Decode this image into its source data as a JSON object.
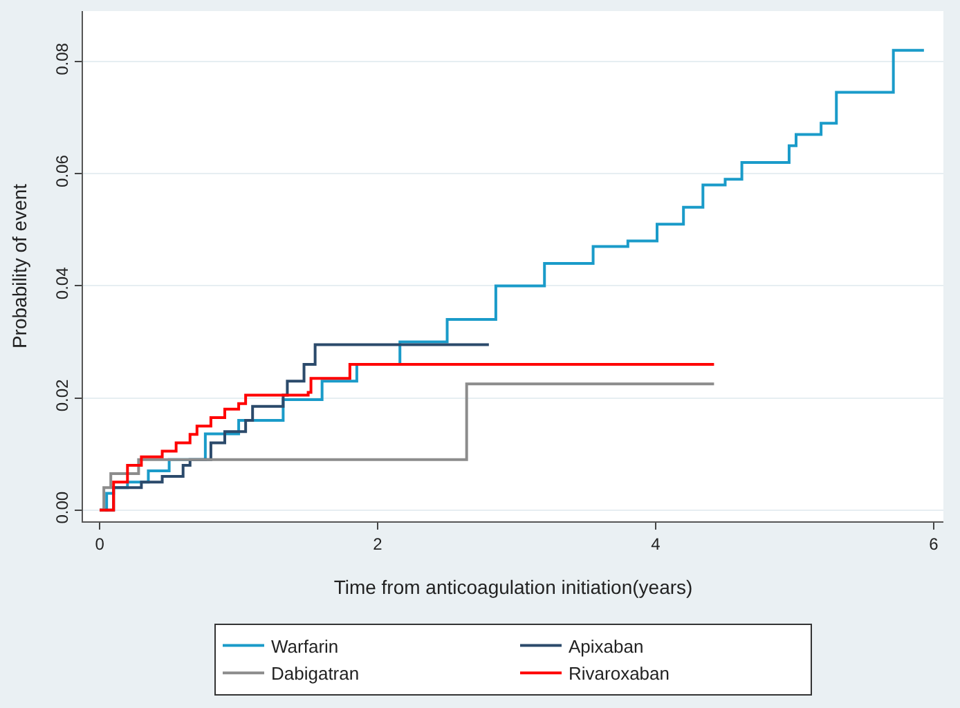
{
  "chart_data": {
    "type": "step",
    "xlabel": "Time from anticoagulation initiation(years)",
    "ylabel": "Probability of event",
    "xlim": [
      -0.12,
      6.07
    ],
    "xticks": [
      0,
      2,
      4,
      6
    ],
    "ylim": [
      -0.002,
      0.089
    ],
    "yticks": [
      {
        "value": 0,
        "label": "0.00"
      },
      0.02,
      0.04,
      0.06,
      0.08
    ],
    "grid": "y",
    "legend": "bottom",
    "line_style": "solid",
    "marker": "none",
    "series": [
      {
        "name": "Warfarin",
        "color": "#1a9bc9",
        "x": [
          0,
          0.05,
          0.1,
          0.2,
          0.35,
          0.5,
          0.76,
          1.0,
          1.32,
          1.6,
          1.85,
          2.16,
          2.5,
          2.85,
          3.2,
          3.55,
          3.8,
          4.01,
          4.2,
          4.34,
          4.5,
          4.62,
          4.96,
          5.01,
          5.19,
          5.3,
          5.71,
          5.93
        ],
        "values": [
          0,
          0.003,
          0.004,
          0.005,
          0.007,
          0.009,
          0.0136,
          0.016,
          0.0197,
          0.023,
          0.026,
          0.03,
          0.034,
          0.04,
          0.044,
          0.047,
          0.048,
          0.051,
          0.054,
          0.058,
          0.059,
          0.062,
          0.065,
          0.067,
          0.069,
          0.0745,
          0.082,
          0.082
        ]
      },
      {
        "name": "Apixaban",
        "color": "#2b4a6b",
        "x": [
          0,
          0.1,
          0.3,
          0.45,
          0.6,
          0.65,
          0.8,
          0.9,
          1.05,
          1.1,
          1.32,
          1.35,
          1.47,
          1.55,
          2.8
        ],
        "values": [
          0,
          0.004,
          0.005,
          0.006,
          0.008,
          0.009,
          0.012,
          0.014,
          0.016,
          0.0185,
          0.0205,
          0.023,
          0.026,
          0.0295,
          0.0295
        ]
      },
      {
        "name": "Dabigatran",
        "color": "#8c8c8c",
        "x": [
          0,
          0.03,
          0.08,
          0.28,
          2.64,
          4.42
        ],
        "values": [
          0,
          0.004,
          0.0065,
          0.009,
          0.0225,
          0.0225
        ]
      },
      {
        "name": "Rivaroxaban",
        "color": "#ff0000",
        "x": [
          0,
          0.1,
          0.2,
          0.3,
          0.45,
          0.55,
          0.65,
          0.7,
          0.8,
          0.9,
          1.0,
          1.05,
          1.5,
          1.52,
          1.8,
          4.42
        ],
        "values": [
          0,
          0.005,
          0.008,
          0.0095,
          0.0105,
          0.012,
          0.0135,
          0.015,
          0.0165,
          0.018,
          0.019,
          0.0205,
          0.021,
          0.0235,
          0.026,
          0.026
        ]
      }
    ]
  }
}
